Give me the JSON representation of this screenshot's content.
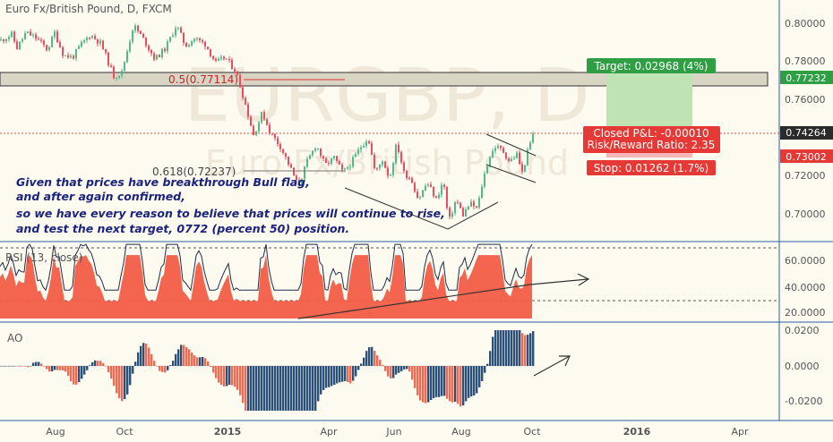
{
  "chart_data": {
    "type": "candlestick",
    "symbol": {
      "title": "Euro Fx/British Pound, D, FXCM",
      "watermark_main": "EURGBP, D",
      "watermark_sub": "Euro Fx/British Pound"
    },
    "price_axis": {
      "ylim": [
        0.6835,
        0.8175
      ],
      "ticks": [
        "0.80000",
        "0.78000",
        "0.76000",
        "0.72000",
        "0.70000"
      ]
    },
    "time_axis": {
      "labels": [
        "Aug",
        "Oct",
        "2015",
        "Apr",
        "Jun",
        "Aug",
        "Oct",
        "2016",
        "Apr"
      ]
    },
    "price_series": {
      "name": "EURGBP",
      "up_color": "#53b987",
      "down_color": "#eb4d5c",
      "anchors": [
        {
          "t": 0,
          "v": 0.792
        },
        {
          "t": 12,
          "v": 0.795
        },
        {
          "t": 18,
          "v": 0.788
        },
        {
          "t": 28,
          "v": 0.796
        },
        {
          "t": 40,
          "v": 0.793
        },
        {
          "t": 52,
          "v": 0.787
        },
        {
          "t": 60,
          "v": 0.796
        },
        {
          "t": 70,
          "v": 0.784
        },
        {
          "t": 80,
          "v": 0.783
        },
        {
          "t": 90,
          "v": 0.79
        },
        {
          "t": 100,
          "v": 0.795
        },
        {
          "t": 112,
          "v": 0.79
        },
        {
          "t": 126,
          "v": 0.773
        },
        {
          "t": 135,
          "v": 0.775
        },
        {
          "t": 148,
          "v": 0.8
        },
        {
          "t": 160,
          "v": 0.792
        },
        {
          "t": 172,
          "v": 0.782
        },
        {
          "t": 184,
          "v": 0.788
        },
        {
          "t": 196,
          "v": 0.8
        },
        {
          "t": 206,
          "v": 0.789
        },
        {
          "t": 216,
          "v": 0.793
        },
        {
          "t": 228,
          "v": 0.79
        },
        {
          "t": 240,
          "v": 0.78
        },
        {
          "t": 250,
          "v": 0.783
        },
        {
          "t": 262,
          "v": 0.776
        },
        {
          "t": 272,
          "v": 0.76
        },
        {
          "t": 282,
          "v": 0.742
        },
        {
          "t": 292,
          "v": 0.754
        },
        {
          "t": 300,
          "v": 0.744
        },
        {
          "t": 312,
          "v": 0.736
        },
        {
          "t": 322,
          "v": 0.726
        },
        {
          "t": 332,
          "v": 0.715
        },
        {
          "t": 342,
          "v": 0.728
        },
        {
          "t": 352,
          "v": 0.737
        },
        {
          "t": 362,
          "v": 0.726
        },
        {
          "t": 372,
          "v": 0.73
        },
        {
          "t": 382,
          "v": 0.722
        },
        {
          "t": 392,
          "v": 0.728
        },
        {
          "t": 402,
          "v": 0.736
        },
        {
          "t": 410,
          "v": 0.741
        },
        {
          "t": 418,
          "v": 0.722
        },
        {
          "t": 426,
          "v": 0.729
        },
        {
          "t": 434,
          "v": 0.719
        },
        {
          "t": 442,
          "v": 0.738
        },
        {
          "t": 450,
          "v": 0.722
        },
        {
          "t": 458,
          "v": 0.719
        },
        {
          "t": 466,
          "v": 0.708
        },
        {
          "t": 476,
          "v": 0.717
        },
        {
          "t": 486,
          "v": 0.708
        },
        {
          "t": 494,
          "v": 0.718
        },
        {
          "t": 500,
          "v": 0.696
        },
        {
          "t": 508,
          "v": 0.708
        },
        {
          "t": 516,
          "v": 0.7
        },
        {
          "t": 524,
          "v": 0.706
        },
        {
          "t": 532,
          "v": 0.703
        },
        {
          "t": 538,
          "v": 0.718
        },
        {
          "t": 545,
          "v": 0.73
        },
        {
          "t": 552,
          "v": 0.736
        },
        {
          "t": 560,
          "v": 0.734
        },
        {
          "t": 568,
          "v": 0.728
        },
        {
          "t": 576,
          "v": 0.732
        },
        {
          "t": 582,
          "v": 0.722
        },
        {
          "t": 588,
          "v": 0.733
        },
        {
          "t": 594,
          "v": 0.742
        }
      ]
    },
    "rsi": {
      "label": "RSI (13, close)",
      "ticks": [
        "60.0000",
        "40.0000",
        "20.0000"
      ],
      "overbought": 70,
      "oversold": 30
    },
    "ao": {
      "label": "AO",
      "ticks": [
        "0.0200",
        "0.0000",
        "-0.0200"
      ]
    },
    "fib_levels": [
      {
        "label": "0.5(0.77114)",
        "value": 0.77114
      },
      {
        "label": "0.618(0.72237)",
        "value": 0.72237
      }
    ],
    "resistance_zone": {
      "low": 0.7695,
      "high": 0.774
    },
    "position": {
      "target": "Target: 0.02968 (4%)",
      "closed_pnl": "Closed P&L: -0.00010",
      "risk_reward": "Risk/Reward Ratio: 2.35",
      "stop": "Stop: 0.01262 (1.7%)",
      "entry": 0.74264,
      "target_price": 0.77232,
      "stop_price": 0.73002
    },
    "price_labels": {
      "target": "0.77232",
      "current": "0.74264",
      "stop": "0.73002"
    },
    "annotation": [
      "Given that prices have breakthrough Bull flag,",
      "and after again confirmed,",
      "so we have every reason to believe that prices will continue to rise,",
      "and test the next target, 0772 (percent 50) position."
    ]
  }
}
